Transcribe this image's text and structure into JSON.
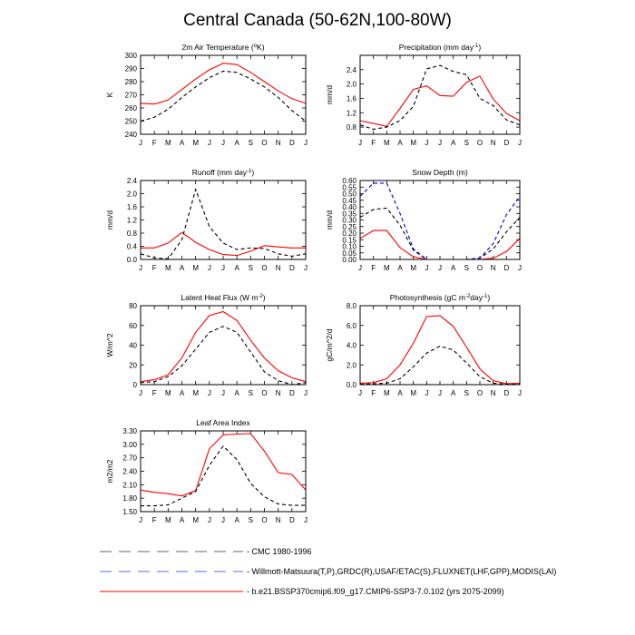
{
  "title": "Central Canada (50-62N,100-80W)",
  "months": [
    "J",
    "F",
    "M",
    "A",
    "M",
    "J",
    "J",
    "A",
    "S",
    "O",
    "N",
    "D",
    "J"
  ],
  "legend": [
    {
      "key": "cmc",
      "label": "CMC 1980-1996",
      "color": "#000000",
      "dash": "dashed"
    },
    {
      "key": "obs",
      "label": "Willmott-Matsuura(T,P),GRDC(R),USAF/ETAC(S),FLUXNET(LHF,GPP),MODIS(LAI)",
      "color": "#0000cc",
      "dash": "dashed"
    },
    {
      "key": "model",
      "label": "b.e21.BSSP370cmip6.f09_g17.CMIP6-SSP3-7.0.102 (yrs 2075-2099)",
      "color": "#ff0000",
      "dash": "solid"
    }
  ],
  "chart_data": [
    {
      "type": "line",
      "title": "2m Air Temperature (",
      "title_sup": "o",
      "title_tail": "K)",
      "ylabel": "K",
      "ylim": [
        240,
        300
      ],
      "yticks": [
        "240",
        "250",
        "260",
        "270",
        "280",
        "290",
        "300"
      ],
      "series": [
        {
          "name": "b.e21.BSSP370cmip6.f09_g17.CMIP6-SSP3-7.0.102 (yrs 2075-2099)",
          "key": "model",
          "values": [
            263.5,
            263,
            266,
            274,
            282,
            289,
            294,
            293,
            287,
            280,
            273,
            267,
            263.5
          ]
        },
        {
          "name": "CMC 1980-1996",
          "key": "cmc",
          "values": [
            250,
            253,
            259,
            268,
            276,
            283,
            288,
            287,
            282,
            276,
            268,
            258,
            250
          ]
        }
      ]
    },
    {
      "type": "line",
      "title": "Precipitation (mm day",
      "title_sup": "-1",
      "title_tail": ")",
      "ylabel": "mm/d",
      "ylim": [
        0.6,
        2.8
      ],
      "yticks": [
        "0.8",
        "1.2",
        "1.6",
        "2.0",
        "2.4"
      ],
      "series": [
        {
          "name": "b.e21.BSSP370cmip6.f09_g17.CMIP6-SSP3-7.0.102 (yrs 2075-2099)",
          "key": "model",
          "values": [
            0.98,
            0.9,
            0.82,
            1.32,
            1.85,
            1.95,
            1.68,
            1.66,
            2.05,
            2.22,
            1.58,
            1.18,
            0.98
          ]
        },
        {
          "name": "CMC 1980-1996",
          "key": "cmc",
          "values": [
            0.86,
            0.74,
            0.8,
            0.98,
            1.38,
            2.42,
            2.52,
            2.35,
            2.26,
            1.6,
            1.4,
            1.0,
            0.86
          ]
        }
      ]
    },
    {
      "type": "line",
      "title": "Runoff (mm day",
      "title_sup": "-1",
      "title_tail": ")",
      "ylabel": "mm/d",
      "ylim": [
        0.0,
        2.4
      ],
      "yticks": [
        "0.0",
        "0.4",
        "0.8",
        "1.2",
        "1.6",
        "2.0",
        "2.4"
      ],
      "series": [
        {
          "name": "b.e21.BSSP370cmip6.f09_g17.CMIP6-SSP3-7.0.102 (yrs 2075-2099)",
          "key": "model",
          "values": [
            0.35,
            0.35,
            0.5,
            0.82,
            0.52,
            0.3,
            0.15,
            0.12,
            0.25,
            0.42,
            0.38,
            0.35,
            0.35
          ]
        },
        {
          "name": "CMC 1980-1996",
          "key": "cmc",
          "values": [
            0.17,
            0.05,
            0.02,
            0.6,
            2.13,
            1.0,
            0.5,
            0.3,
            0.35,
            0.33,
            0.17,
            0.1,
            0.17
          ]
        }
      ]
    },
    {
      "type": "line",
      "title": "Snow Depth (m)",
      "title_sup": "",
      "title_tail": "",
      "ylabel": "mm/d",
      "ylim": [
        0.0,
        0.6
      ],
      "yticks": [
        "0.00",
        "0.05",
        "0.10",
        "0.15",
        "0.20",
        "0.25",
        "0.30",
        "0.35",
        "0.40",
        "0.45",
        "0.50",
        "0.55",
        "0.60"
      ],
      "series": [
        {
          "name": "b.e21.BSSP370cmip6.f09_g17.CMIP6-SSP3-7.0.102 (yrs 2075-2099)",
          "key": "model",
          "values": [
            0.16,
            0.22,
            0.22,
            0.09,
            0.02,
            0.0,
            0.0,
            0.0,
            0.0,
            0.0,
            0.01,
            0.06,
            0.16
          ]
        },
        {
          "name": "CMC 1980-1996",
          "key": "cmc",
          "values": [
            0.32,
            0.38,
            0.39,
            0.26,
            0.07,
            0.0,
            0.0,
            0.0,
            0.0,
            0.01,
            0.08,
            0.21,
            0.32
          ]
        },
        {
          "name": "Willmott-Matsuura(T,P),GRDC(R),USAF/ETAC(S),FLUXNET(LHF,GPP),MODIS(LAI)",
          "key": "obs",
          "values": [
            0.48,
            0.58,
            0.58,
            0.35,
            0.08,
            0.0,
            0.0,
            0.0,
            0.0,
            0.01,
            0.12,
            0.34,
            0.48
          ]
        }
      ]
    },
    {
      "type": "line",
      "title": "Latent Heat Flux (W m",
      "title_sup": "-2",
      "title_tail": ")",
      "ylabel": "W/m^2",
      "ylim": [
        0,
        80
      ],
      "yticks": [
        "0",
        "20",
        "40",
        "60",
        "80"
      ],
      "series": [
        {
          "name": "b.e21.BSSP370cmip6.f09_g17.CMIP6-SSP3-7.0.102 (yrs 2075-2099)",
          "key": "model",
          "values": [
            3,
            5,
            10,
            27,
            53,
            70,
            74,
            65,
            45,
            27,
            14,
            7,
            3
          ]
        },
        {
          "name": "CMC 1980-1996",
          "key": "cmc",
          "values": [
            2,
            3,
            8,
            19,
            36,
            53,
            59,
            53,
            33,
            13,
            4,
            0,
            2
          ]
        }
      ]
    },
    {
      "type": "line",
      "title": "Photosynthesis (gC m",
      "title_sup": "-2",
      "title_tail": "day",
      "title_sup2": "-1",
      "title_tail2": ")",
      "ylabel": "gC/m^2/d",
      "ylim": [
        0.0,
        8.0
      ],
      "yticks": [
        "0.0",
        "2.0",
        "4.0",
        "6.0",
        "8.0"
      ],
      "series": [
        {
          "name": "b.e21.BSSP370cmip6.f09_g17.CMIP6-SSP3-7.0.102 (yrs 2075-2099)",
          "key": "model",
          "values": [
            0.15,
            0.2,
            0.6,
            2.0,
            4.2,
            6.9,
            7.0,
            5.9,
            3.8,
            1.6,
            0.4,
            0.1,
            0.15
          ]
        },
        {
          "name": "CMC 1980-1996",
          "key": "cmc",
          "values": [
            0.05,
            0.08,
            0.15,
            0.6,
            1.8,
            3.2,
            3.9,
            3.5,
            2.2,
            0.8,
            0.15,
            0.05,
            0.05
          ]
        }
      ]
    },
    {
      "type": "line",
      "title": "Leaf Area Index",
      "title_sup": "",
      "title_tail": "",
      "ylabel": "m2/m2",
      "ylim": [
        1.5,
        3.3
      ],
      "yticks": [
        "1.50",
        "1.80",
        "2.10",
        "2.40",
        "2.70",
        "3.00",
        "3.30"
      ],
      "series": [
        {
          "name": "b.e21.BSSP370cmip6.f09_g17.CMIP6-SSP3-7.0.102 (yrs 2075-2099)",
          "key": "model",
          "values": [
            1.98,
            1.93,
            1.9,
            1.85,
            1.97,
            2.9,
            3.21,
            3.23,
            3.24,
            2.85,
            2.37,
            2.33,
            1.98
          ]
        },
        {
          "name": "CMC 1980-1996",
          "key": "cmc",
          "values": [
            1.63,
            1.63,
            1.65,
            1.8,
            1.95,
            2.53,
            2.96,
            2.66,
            2.13,
            1.83,
            1.67,
            1.64,
            1.64
          ]
        }
      ]
    }
  ]
}
